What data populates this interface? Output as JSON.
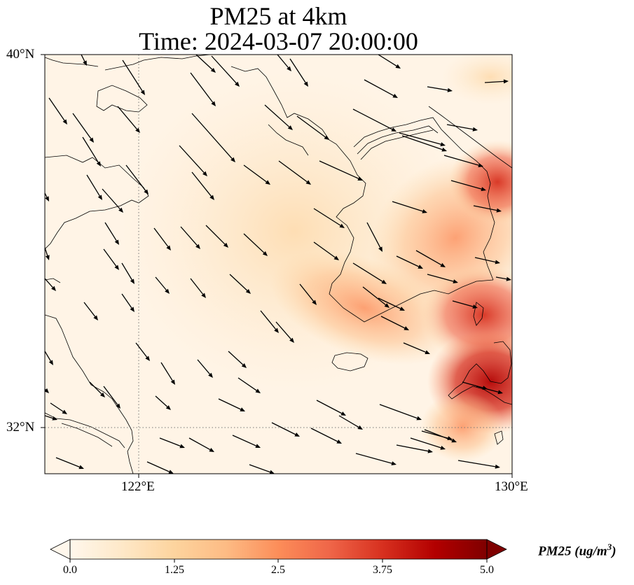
{
  "title": {
    "line1": "PM25 at 4km",
    "line2": "Time: 2024-03-07 20:00:00"
  },
  "axes": {
    "lat_ticks": [
      "40°N",
      "32°N"
    ],
    "lon_ticks": [
      "122°E",
      "130°E"
    ],
    "gridlines": "dotted"
  },
  "colorbar": {
    "label": "PM25 (ug/m³)",
    "ticks": [
      "0.0",
      "1.25",
      "2.5",
      "3.75",
      "5.0"
    ],
    "range": [
      0.0,
      5.0
    ],
    "extend": "both",
    "colormap": "OrRd",
    "colors": [
      "#fff7ec",
      "#fee8c8",
      "#fdd49e",
      "#fdbb84",
      "#fc8d59",
      "#ef6548",
      "#d7301f",
      "#b30000",
      "#7f0000"
    ]
  },
  "map_data": {
    "variable": "PM25",
    "extent": {
      "lon": [
        120,
        130
      ],
      "lat": [
        31,
        40
      ]
    },
    "field_description": "Low background concentrations over the sea and China; elevated plume along the south and east coast of the Korean peninsula and toward Kyushu",
    "wind_vectors": "dense arrows pointing east-southeast over the domain"
  }
}
